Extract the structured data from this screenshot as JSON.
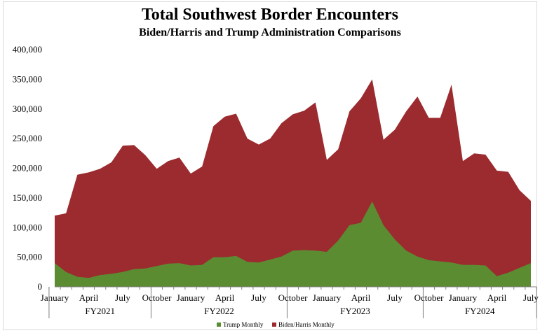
{
  "chart_data": {
    "type": "area",
    "title": "Total Southwest Border Encounters",
    "subtitle": "Biden/Harris and Trump Administration Comparisons",
    "ylim": [
      0,
      400000
    ],
    "yticks": [
      "0",
      "50,000",
      "100,000",
      "150,000",
      "200,000",
      "250,000",
      "300,000",
      "350,000",
      "400,000"
    ],
    "month_labels": [
      {
        "label": "January",
        "index": 0
      },
      {
        "label": "April",
        "index": 3
      },
      {
        "label": "July",
        "index": 6
      },
      {
        "label": "October",
        "index": 9
      },
      {
        "label": "January",
        "index": 12
      },
      {
        "label": "April",
        "index": 15
      },
      {
        "label": "July",
        "index": 18
      },
      {
        "label": "October",
        "index": 21
      },
      {
        "label": "January",
        "index": 24
      },
      {
        "label": "April",
        "index": 27
      },
      {
        "label": "July",
        "index": 30
      },
      {
        "label": "October",
        "index": 33
      },
      {
        "label": "January",
        "index": 36
      },
      {
        "label": "April",
        "index": 39
      },
      {
        "label": "July",
        "index": 42
      }
    ],
    "fiscal_years": [
      {
        "label": "FY2021",
        "start": 0,
        "end": 8
      },
      {
        "label": "FY2022",
        "start": 9,
        "end": 20
      },
      {
        "label": "FY2023",
        "start": 21,
        "end": 32
      },
      {
        "label": "FY2024",
        "start": 33,
        "end": 42
      }
    ],
    "series": [
      {
        "name": "Trump Monthly",
        "color": "#5b8c32",
        "values": [
          40000,
          25000,
          17000,
          15000,
          20000,
          22000,
          25000,
          30000,
          31000,
          35000,
          39000,
          40000,
          36000,
          37000,
          50000,
          50000,
          52000,
          42000,
          41000,
          46000,
          51000,
          61000,
          62000,
          61000,
          59000,
          78000,
          104000,
          108000,
          144000,
          104000,
          80000,
          61000,
          51000,
          45000,
          43000,
          41000,
          37000,
          37000,
          36000,
          18000,
          24000,
          32000,
          40000
        ]
      },
      {
        "name": "Biden/Harris Monthly",
        "color": "#9b2b2f",
        "values": [
          120000,
          124000,
          189000,
          193000,
          199000,
          210000,
          238000,
          239000,
          222000,
          199000,
          212000,
          218000,
          191000,
          203000,
          271000,
          287000,
          292000,
          250000,
          240000,
          250000,
          276000,
          291000,
          297000,
          311000,
          214000,
          232000,
          296000,
          318000,
          350000,
          248000,
          265000,
          296000,
          321000,
          285000,
          285000,
          341000,
          212000,
          225000,
          223000,
          196000,
          194000,
          163000,
          145000
        ]
      }
    ]
  }
}
